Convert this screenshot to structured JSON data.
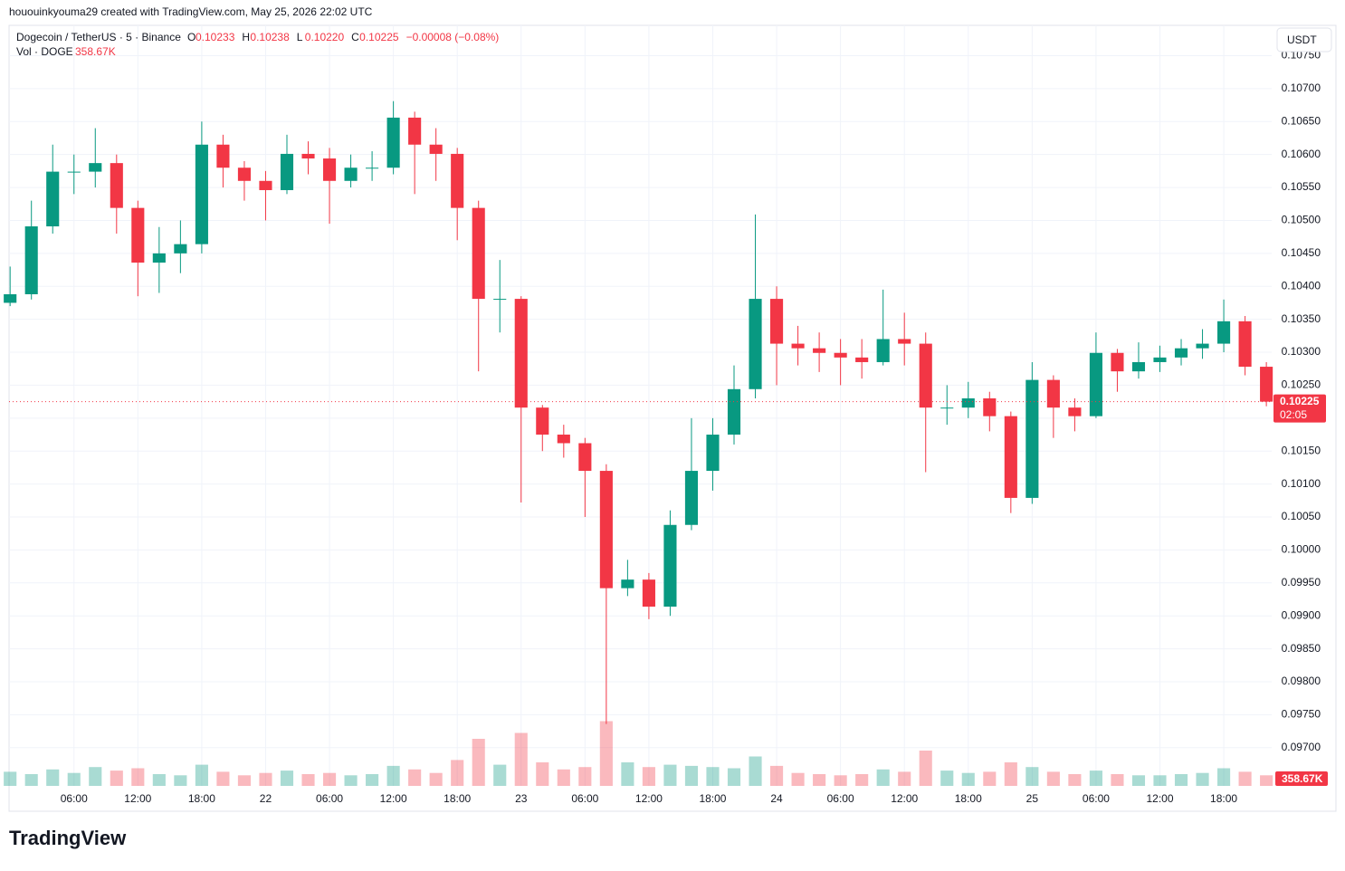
{
  "chart_data": {
    "type": "candlestick",
    "header": {
      "byline": "hououinkyouma29 created with TradingView.com, May 25, 2026 22:02 UTC",
      "symbol": "Dogecoin / TetherUS · 5 · Binance",
      "ohlc": [
        {
          "key": "O",
          "value": "0.10233"
        },
        {
          "key": "H",
          "value": "0.10238"
        },
        {
          "key": "L",
          "value": "0.10220"
        },
        {
          "key": "C",
          "value": "0.10225"
        }
      ],
      "change": "−0.00008 (−0.08%)",
      "volume_title": "Vol · DOGE",
      "volume_value": "358.67K"
    },
    "currency": "USDT",
    "last_price": {
      "value": 0.10225,
      "label": "0.10225"
    },
    "countdown": "02:05",
    "volume_badge": "358.67K",
    "brand": "TradingView",
    "up_color": "#089981",
    "down_color": "#f23645",
    "grid": true,
    "x": [
      0,
      2,
      4,
      6,
      8,
      10,
      12,
      14,
      16,
      18,
      20,
      22,
      24,
      26,
      28,
      30,
      32,
      34,
      36,
      38,
      40,
      42,
      44,
      46,
      48,
      50,
      52,
      54,
      56,
      58,
      60,
      62,
      64,
      66,
      68,
      70,
      72,
      74,
      76,
      78,
      80,
      82,
      84,
      86,
      88,
      90,
      92,
      94,
      96,
      98,
      100,
      102,
      104,
      106,
      108,
      110,
      112,
      114,
      116,
      118
    ],
    "open": [
      0.10375,
      0.10388,
      0.10491,
      0.10574,
      0.10574,
      0.10587,
      0.10519,
      0.10436,
      0.1045,
      0.10464,
      0.10615,
      0.1058,
      0.1056,
      0.10546,
      0.10601,
      0.10594,
      0.1056,
      0.1058,
      0.1058,
      0.10656,
      0.10615,
      0.10601,
      0.10519,
      0.10381,
      0.10381,
      0.10216,
      0.10175,
      0.10162,
      0.1012,
      0.09942,
      0.09955,
      0.09914,
      0.10038,
      0.1012,
      0.10175,
      0.10244,
      0.10381,
      0.10313,
      0.10306,
      0.10299,
      0.10292,
      0.10285,
      0.1032,
      0.10313,
      0.10216,
      0.10216,
      0.1023,
      0.10203,
      0.10079,
      0.10258,
      0.10216,
      0.10203,
      0.10299,
      0.10271,
      0.10285,
      0.10292,
      0.10306,
      0.10313,
      0.10347,
      0.10278
    ],
    "high": [
      0.1043,
      0.1053,
      0.10615,
      0.106,
      0.1064,
      0.106,
      0.1053,
      0.1049,
      0.105,
      0.1065,
      0.1063,
      0.1059,
      0.10575,
      0.1063,
      0.1062,
      0.1061,
      0.106,
      0.10605,
      0.10681,
      0.10665,
      0.1064,
      0.1061,
      0.1053,
      0.1044,
      0.10385,
      0.1022,
      0.1019,
      0.1017,
      0.1013,
      0.09985,
      0.09965,
      0.1006,
      0.102,
      0.102,
      0.1028,
      0.10509,
      0.104,
      0.1034,
      0.1033,
      0.1032,
      0.1032,
      0.10395,
      0.1036,
      0.1033,
      0.1025,
      0.10255,
      0.1024,
      0.1021,
      0.10285,
      0.10265,
      0.1023,
      0.1033,
      0.10305,
      0.10315,
      0.1031,
      0.1032,
      0.10335,
      0.1038,
      0.10355,
      0.10285
    ],
    "low": [
      0.1037,
      0.1038,
      0.1048,
      0.1054,
      0.1055,
      0.1048,
      0.10385,
      0.1039,
      0.1042,
      0.1045,
      0.1055,
      0.1053,
      0.105,
      0.1054,
      0.1057,
      0.10495,
      0.1055,
      0.1056,
      0.1057,
      0.1054,
      0.1056,
      0.1047,
      0.10271,
      0.1033,
      0.10072,
      0.1015,
      0.1014,
      0.1005,
      0.09736,
      0.0993,
      0.09895,
      0.099,
      0.1003,
      0.1009,
      0.1016,
      0.1023,
      0.1025,
      0.1028,
      0.1027,
      0.1025,
      0.1026,
      0.1028,
      0.1028,
      0.10118,
      0.1019,
      0.102,
      0.1018,
      0.10056,
      0.1007,
      0.1017,
      0.1018,
      0.102,
      0.1024,
      0.1026,
      0.1027,
      0.1028,
      0.1029,
      0.103,
      0.10265,
      0.10218
    ],
    "close": [
      0.10388,
      0.10491,
      0.10574,
      0.10574,
      0.10587,
      0.10519,
      0.10436,
      0.1045,
      0.10464,
      0.10615,
      0.1058,
      0.1056,
      0.10546,
      0.10601,
      0.10594,
      0.1056,
      0.1058,
      0.1058,
      0.10656,
      0.10615,
      0.10601,
      0.10519,
      0.10381,
      0.10381,
      0.10216,
      0.10175,
      0.10162,
      0.1012,
      0.09942,
      0.09955,
      0.09914,
      0.10038,
      0.1012,
      0.10175,
      0.10244,
      0.10381,
      0.10313,
      0.10306,
      0.10299,
      0.10292,
      0.10285,
      0.1032,
      0.10313,
      0.10216,
      0.10216,
      0.1023,
      0.10203,
      0.10079,
      0.10258,
      0.10216,
      0.10203,
      0.10299,
      0.10271,
      0.10285,
      0.10292,
      0.10306,
      0.10313,
      0.10347,
      0.10278,
      0.10225
    ],
    "volume": [
      12000000,
      10000000,
      14000000,
      11000000,
      16000000,
      13000000,
      15000000,
      10000000,
      9000000,
      18000000,
      12000000,
      9000000,
      11000000,
      13000000,
      10000000,
      11000000,
      9000000,
      10000000,
      17000000,
      14000000,
      11000000,
      22000000,
      40000000,
      18000000,
      45000000,
      20000000,
      14000000,
      16000000,
      55000000,
      20000000,
      16000000,
      18000000,
      17000000,
      16000000,
      15000000,
      25000000,
      17000000,
      11000000,
      10000000,
      9000000,
      10000000,
      14000000,
      12000000,
      30000000,
      13000000,
      11000000,
      12000000,
      20000000,
      16000000,
      12000000,
      10000000,
      13000000,
      10000000,
      9000000,
      9000000,
      10000000,
      11000000,
      15000000,
      12000000,
      9000000
    ],
    "vlim": [
      0,
      60000000
    ],
    "xlim": [
      -0.1,
      118.5
    ],
    "xticks": [
      {
        "value": 6,
        "label": "06:00"
      },
      {
        "value": 12,
        "label": "12:00"
      },
      {
        "value": 18,
        "label": "18:00"
      },
      {
        "value": 24,
        "label": "22"
      },
      {
        "value": 30,
        "label": "06:00"
      },
      {
        "value": 36,
        "label": "12:00"
      },
      {
        "value": 42,
        "label": "18:00"
      },
      {
        "value": 48,
        "label": "23"
      },
      {
        "value": 54,
        "label": "06:00"
      },
      {
        "value": 60,
        "label": "12:00"
      },
      {
        "value": 66,
        "label": "18:00"
      },
      {
        "value": 72,
        "label": "24"
      },
      {
        "value": 78,
        "label": "06:00"
      },
      {
        "value": 84,
        "label": "12:00"
      },
      {
        "value": 90,
        "label": "18:00"
      },
      {
        "value": 96,
        "label": "25"
      },
      {
        "value": 102,
        "label": "06:00"
      },
      {
        "value": 108,
        "label": "12:00"
      },
      {
        "value": 114,
        "label": "18:00"
      }
    ],
    "ylim": [
      0.09642,
      0.10796
    ],
    "yticks": [
      {
        "value": 0.097,
        "label": "0.09700"
      },
      {
        "value": 0.0975,
        "label": "0.09750"
      },
      {
        "value": 0.098,
        "label": "0.09800"
      },
      {
        "value": 0.0985,
        "label": "0.09850"
      },
      {
        "value": 0.099,
        "label": "0.09900"
      },
      {
        "value": 0.0995,
        "label": "0.09950"
      },
      {
        "value": 0.1,
        "label": "0.10000"
      },
      {
        "value": 0.1005,
        "label": "0.10050"
      },
      {
        "value": 0.101,
        "label": "0.10100"
      },
      {
        "value": 0.1015,
        "label": "0.10150"
      },
      {
        "value": 0.102,
        "label": "0.10200"
      },
      {
        "value": 0.1025,
        "label": "0.10250"
      },
      {
        "value": 0.103,
        "label": "0.10300"
      },
      {
        "value": 0.1035,
        "label": "0.10350"
      },
      {
        "value": 0.104,
        "label": "0.10400"
      },
      {
        "value": 0.1045,
        "label": "0.10450"
      },
      {
        "value": 0.105,
        "label": "0.10500"
      },
      {
        "value": 0.1055,
        "label": "0.10550"
      },
      {
        "value": 0.106,
        "label": "0.10600"
      },
      {
        "value": 0.1065,
        "label": "0.10650"
      },
      {
        "value": 0.107,
        "label": "0.10700"
      },
      {
        "value": 0.1075,
        "label": "0.10750"
      }
    ]
  }
}
